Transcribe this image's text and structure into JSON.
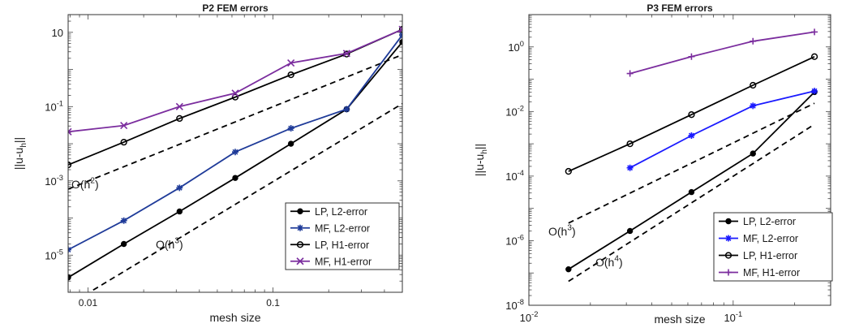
{
  "chart_data": [
    {
      "type": "line",
      "title": "P2 FEM errors",
      "xlabel": "mesh size",
      "ylabel": "||u-u_h||",
      "xscale": "log",
      "yscale": "log",
      "xlim": [
        0.0078125,
        0.5
      ],
      "ylim": [
        1e-06,
        30
      ],
      "xticks": [
        {
          "value": 0.01,
          "label": "0.01"
        },
        {
          "value": 0.1,
          "label": "0.1"
        }
      ],
      "yticks": [
        {
          "value": 1e-05,
          "base": "10",
          "exp": "-5"
        },
        {
          "value": 0.001,
          "base": "10",
          "exp": "-3"
        },
        {
          "value": 0.1,
          "base": "10",
          "exp": "-1"
        },
        {
          "value": 10,
          "base": "10",
          "exp": ""
        }
      ],
      "legend_position": "bottom-right",
      "series": [
        {
          "name": "LP, L2-error",
          "color": "#000000",
          "marker": "dot",
          "x": [
            0.0078125,
            0.015625,
            0.03125,
            0.0625,
            0.125,
            0.25,
            0.5
          ],
          "y": [
            2.5e-06,
            2e-05,
            0.00015,
            0.0012,
            0.01,
            0.085,
            5.5
          ]
        },
        {
          "name": "MF, L2-error",
          "color": "#1f3b99",
          "marker": "star",
          "x": [
            0.0078125,
            0.015625,
            0.03125,
            0.0625,
            0.125,
            0.25,
            0.5
          ],
          "y": [
            1.4e-05,
            8.5e-05,
            0.00065,
            0.006,
            0.026,
            0.085,
            8.5
          ]
        },
        {
          "name": "LP, H1-error",
          "color": "#000000",
          "marker": "circle",
          "x": [
            0.0078125,
            0.015625,
            0.03125,
            0.0625,
            0.125,
            0.25,
            0.5
          ],
          "y": [
            0.0027,
            0.011,
            0.048,
            0.18,
            0.72,
            2.6,
            12
          ]
        },
        {
          "name": "MF, H1-error",
          "color": "#7b2d9e",
          "marker": "x",
          "x": [
            0.0078125,
            0.015625,
            0.03125,
            0.0625,
            0.125,
            0.25,
            0.5
          ],
          "y": [
            0.021,
            0.031,
            0.1,
            0.23,
            1.5,
            2.7,
            12
          ]
        }
      ],
      "reference_lines": [
        {
          "label_base": "O(h",
          "label_exp": "2",
          "label_end": ")",
          "x": [
            0.0078125,
            0.5
          ],
          "y": [
            0.0006,
            2.5
          ]
        },
        {
          "label_base": "O(h",
          "label_exp": "3",
          "label_end": ")",
          "x": [
            0.0078125,
            0.5
          ],
          "y": [
            4.5e-07,
            0.12
          ]
        }
      ]
    },
    {
      "type": "line",
      "title": "P3 FEM errors",
      "xlabel": "mesh size",
      "ylabel": "||u-u_h||",
      "xscale": "log",
      "yscale": "log",
      "xlim": [
        0.01,
        0.3
      ],
      "ylim": [
        1e-08,
        10
      ],
      "xticks": [
        {
          "value": 0.01,
          "base": "10",
          "exp": "-2"
        },
        {
          "value": 0.1,
          "base": "10",
          "exp": "-1"
        }
      ],
      "yticks": [
        {
          "value": 1e-08,
          "base": "10",
          "exp": "-8"
        },
        {
          "value": 1e-06,
          "base": "10",
          "exp": "-6"
        },
        {
          "value": 0.0001,
          "base": "10",
          "exp": "-4"
        },
        {
          "value": 0.01,
          "base": "10",
          "exp": "-2"
        },
        {
          "value": 1,
          "base": "10",
          "exp": "0"
        }
      ],
      "legend_position": "bottom-right",
      "series": [
        {
          "name": "LP, L2-error",
          "color": "#000000",
          "marker": "dot",
          "x": [
            0.015625,
            0.03125,
            0.0625,
            0.125,
            0.25
          ],
          "y": [
            1.3e-07,
            2e-06,
            3.2e-05,
            0.0005,
            0.04
          ]
        },
        {
          "name": "MF, L2-error",
          "color": "#1a1aff",
          "marker": "star",
          "x": [
            0.03125,
            0.0625,
            0.125,
            0.25
          ],
          "y": [
            0.00018,
            0.0018,
            0.015,
            0.043
          ]
        },
        {
          "name": "LP, H1-error",
          "color": "#000000",
          "marker": "circle",
          "x": [
            0.015625,
            0.03125,
            0.0625,
            0.125,
            0.25
          ],
          "y": [
            0.00014,
            0.001,
            0.008,
            0.065,
            0.5
          ]
        },
        {
          "name": "MF, H1-error",
          "color": "#7b2d9e",
          "marker": "plus",
          "x": [
            0.03125,
            0.0625,
            0.125,
            0.25
          ],
          "y": [
            0.15,
            0.5,
            1.5,
            2.9
          ]
        }
      ],
      "reference_lines": [
        {
          "label_base": "O(h",
          "label_exp": "3",
          "label_end": ")",
          "x": [
            0.015625,
            0.25
          ],
          "y": [
            3.5e-06,
            0.018
          ]
        },
        {
          "label_base": "O(h",
          "label_exp": "4",
          "label_end": ")",
          "x": [
            0.015625,
            0.25
          ],
          "y": [
            5.5e-08,
            0.004
          ]
        }
      ]
    }
  ]
}
